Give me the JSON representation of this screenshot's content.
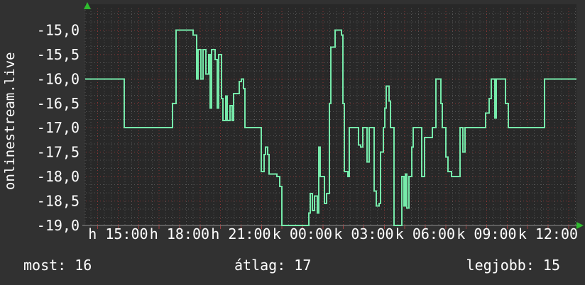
{
  "page": {
    "bg": "#313131",
    "plot_bg": "#282828",
    "text_color": "#ffffff"
  },
  "chart_data": {
    "type": "line",
    "line_style": "step",
    "title": "onlinestream.live",
    "series_color": "#76eaaa",
    "grid": {
      "minor_color": "#555555",
      "major_color": "#8a3535",
      "axis_color": "#8f8f8f",
      "arrow_color": "#2fbb2f",
      "grid_on": true
    },
    "ylim": [
      -19.0,
      -14.55
    ],
    "window_hours": 24,
    "y_ticks": [
      {
        "label": "-15,0",
        "v": -15.0
      },
      {
        "label": "-15,5",
        "v": -15.5
      },
      {
        "label": "-16,0",
        "v": -16.0
      },
      {
        "label": "-16,5",
        "v": -16.5
      },
      {
        "label": "-17,0",
        "v": -17.0
      },
      {
        "label": "-17,5",
        "v": -17.5
      },
      {
        "label": "-18,0",
        "v": -18.0
      },
      {
        "label": "-18,5",
        "v": -18.5
      },
      {
        "label": "-19,0",
        "v": -19.0
      }
    ],
    "x_ticks": [
      {
        "label": "h 15:00",
        "t": 1.61
      },
      {
        "label": "h 18:00",
        "t": 4.61
      },
      {
        "label": "h 21:00",
        "t": 7.61
      },
      {
        "label": "k 00:00",
        "t": 10.61
      },
      {
        "label": "k 03:00",
        "t": 13.61
      },
      {
        "label": "k 06:00",
        "t": 16.61
      },
      {
        "label": "k 09:00",
        "t": 19.61
      },
      {
        "label": "k 12:00",
        "t": 22.61
      }
    ],
    "series": [
      {
        "steps": [
          [
            0.0,
            -16.0
          ],
          [
            1.91,
            -17.0
          ],
          [
            4.27,
            -16.5
          ],
          [
            4.44,
            -15.0
          ],
          [
            5.27,
            -15.1
          ],
          [
            5.44,
            -16.0
          ],
          [
            5.51,
            -15.4
          ],
          [
            5.65,
            -16.0
          ],
          [
            5.76,
            -15.4
          ],
          [
            5.9,
            -15.9
          ],
          [
            6.03,
            -15.5
          ],
          [
            6.1,
            -16.6
          ],
          [
            6.17,
            -15.4
          ],
          [
            6.35,
            -15.6
          ],
          [
            6.45,
            -16.6
          ],
          [
            6.52,
            -15.5
          ],
          [
            6.66,
            -16.4
          ],
          [
            6.73,
            -16.85
          ],
          [
            6.87,
            -16.35
          ],
          [
            6.94,
            -16.85
          ],
          [
            7.07,
            -16.55
          ],
          [
            7.18,
            -16.85
          ],
          [
            7.25,
            -16.3
          ],
          [
            7.53,
            -16.05
          ],
          [
            7.63,
            -16.0
          ],
          [
            7.73,
            -16.2
          ],
          [
            7.8,
            -17.0
          ],
          [
            8.6,
            -17.9
          ],
          [
            8.74,
            -17.55
          ],
          [
            8.81,
            -17.4
          ],
          [
            8.91,
            -17.55
          ],
          [
            8.98,
            -17.95
          ],
          [
            9.36,
            -18.0
          ],
          [
            9.5,
            -18.2
          ],
          [
            9.61,
            -19.0
          ],
          [
            10.92,
            -18.75
          ],
          [
            10.99,
            -18.35
          ],
          [
            11.1,
            -18.7
          ],
          [
            11.2,
            -18.4
          ],
          [
            11.34,
            -18.75
          ],
          [
            11.41,
            -17.4
          ],
          [
            11.48,
            -18.0
          ],
          [
            11.69,
            -18.55
          ],
          [
            11.79,
            -18.35
          ],
          [
            11.93,
            -16.5
          ],
          [
            12.0,
            -15.35
          ],
          [
            12.21,
            -15.0
          ],
          [
            12.52,
            -15.1
          ],
          [
            12.59,
            -16.5
          ],
          [
            12.66,
            -17.9
          ],
          [
            12.83,
            -18.0
          ],
          [
            12.9,
            -17.0
          ],
          [
            13.35,
            -17.35
          ],
          [
            13.46,
            -17.4
          ],
          [
            13.56,
            -17.0
          ],
          [
            13.77,
            -17.7
          ],
          [
            13.87,
            -17.0
          ],
          [
            14.11,
            -18.3
          ],
          [
            14.22,
            -18.6
          ],
          [
            14.36,
            -18.55
          ],
          [
            14.43,
            -17.5
          ],
          [
            14.57,
            -17.0
          ],
          [
            14.64,
            -16.6
          ],
          [
            14.71,
            -16.15
          ],
          [
            14.84,
            -16.45
          ],
          [
            14.91,
            -17.0
          ],
          [
            15.09,
            -19.0
          ],
          [
            15.47,
            -18.0
          ],
          [
            15.57,
            -18.6
          ],
          [
            15.64,
            -17.95
          ],
          [
            15.71,
            -18.65
          ],
          [
            15.81,
            -18.0
          ],
          [
            15.95,
            -17.4
          ],
          [
            16.02,
            -17.0
          ],
          [
            16.44,
            -18.0
          ],
          [
            16.58,
            -17.2
          ],
          [
            16.96,
            -17.0
          ],
          [
            17.13,
            -16.0
          ],
          [
            17.37,
            -16.5
          ],
          [
            17.44,
            -17.0
          ],
          [
            17.62,
            -17.6
          ],
          [
            17.72,
            -17.9
          ],
          [
            17.9,
            -18.0
          ],
          [
            18.31,
            -17.0
          ],
          [
            18.45,
            -17.5
          ],
          [
            18.55,
            -17.0
          ],
          [
            19.56,
            -16.7
          ],
          [
            19.73,
            -16.4
          ],
          [
            19.84,
            -16.0
          ],
          [
            20.01,
            -16.8
          ],
          [
            20.08,
            -16.0
          ],
          [
            20.53,
            -16.5
          ],
          [
            20.67,
            -17.0
          ],
          [
            22.44,
            -16.0
          ]
        ]
      }
    ]
  },
  "stats": {
    "now_label": "most:",
    "now_value": "16",
    "avg_label": "átlag:",
    "avg_value": "17",
    "best_label": "legjobb:",
    "best_value": "15"
  }
}
